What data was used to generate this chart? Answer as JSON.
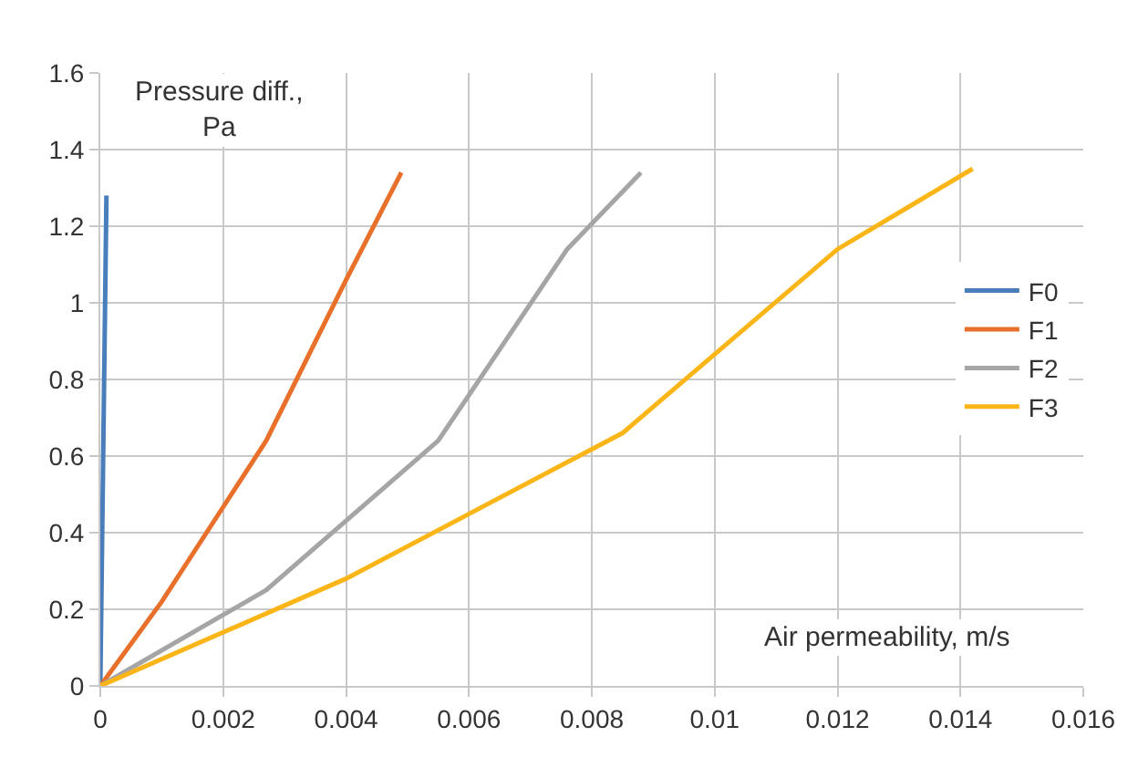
{
  "chart_data": {
    "type": "line",
    "xlabel": "Air permeability, m/s",
    "ylabel": "Pressure diff., Pa",
    "xlim": [
      0,
      0.016
    ],
    "xticks": [
      0,
      0.002,
      0.004,
      0.006,
      0.008,
      0.01,
      0.012,
      0.014,
      0.016
    ],
    "ylim": [
      0,
      1.6
    ],
    "yticks": [
      0,
      0.2,
      0.4,
      0.6,
      0.8,
      1,
      1.2,
      1.4,
      1.6
    ],
    "grid": true,
    "legend": "right",
    "marker": "none",
    "line_style": "solid",
    "series": [
      {
        "name": "F0",
        "color": "#4a7ebb",
        "x": [
          0,
          0.0001
        ],
        "values": [
          0,
          1.28
        ]
      },
      {
        "name": "F1",
        "color": "#e8702a",
        "x": [
          0,
          0.001,
          0.0027,
          0.004,
          0.0049
        ],
        "values": [
          0,
          0.22,
          0.64,
          1.06,
          1.34
        ]
      },
      {
        "name": "F2",
        "color": "#a5a5a5",
        "x": [
          0,
          0.0027,
          0.0055,
          0.0076,
          0.0088
        ],
        "values": [
          0,
          0.25,
          0.64,
          1.14,
          1.34
        ]
      },
      {
        "name": "F3",
        "color": "#fbb516",
        "x": [
          0,
          0.004,
          0.0085,
          0.012,
          0.0142
        ],
        "values": [
          0,
          0.28,
          0.66,
          1.14,
          1.35
        ]
      }
    ]
  }
}
